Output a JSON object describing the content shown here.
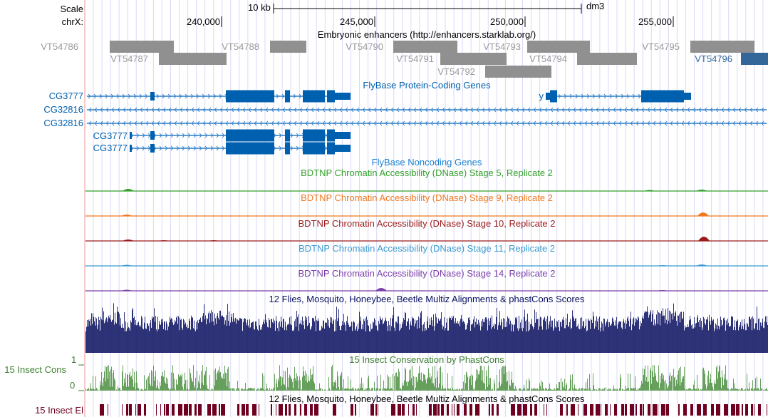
{
  "header": {
    "scale_label": "Scale",
    "scale_bar": "10 kb",
    "assembly": "dm3",
    "chrom_label": "chrX:",
    "ticks": [
      "240,000",
      "245,000",
      "250,000",
      "255,000"
    ]
  },
  "tracks": {
    "enhancers": {
      "title": "Embryonic enhancers (http://enhancers.starklab.org/)",
      "items": [
        "VT54786",
        "VT54787",
        "VT54788",
        "VT54790",
        "VT54791",
        "VT54792",
        "VT54793",
        "VT54794",
        "VT54795",
        "VT54796"
      ],
      "color": "#909090",
      "highlight_color": "#336699"
    },
    "protein_genes": {
      "title": "FlyBase Protein-Coding Genes",
      "genes": [
        "CG3777",
        "CG32816",
        "CG32816",
        "CG3777",
        "CG3777",
        "y"
      ],
      "color": "#0060B0"
    },
    "noncoding": {
      "title": "FlyBase Noncoding Genes"
    },
    "dnase": [
      {
        "title": "BDTNP Chromatin Accessibility (DNase) Stage 5, Replicate 2",
        "color": "#33A02C"
      },
      {
        "title": "BDTNP Chromatin Accessibility (DNase) Stage 9, Replicate 2",
        "color": "#F07820"
      },
      {
        "title": "BDTNP Chromatin Accessibility (DNase) Stage 10, Replicate 2",
        "color": "#9B1B1B"
      },
      {
        "title": "BDTNP Chromatin Accessibility (DNase) Stage 11, Replicate 2",
        "color": "#3A9AD0"
      },
      {
        "title": "BDTNP Chromatin Accessibility (DNase) Stage 14, Replicate 2",
        "color": "#7B3FA8"
      }
    ],
    "multiz": {
      "title": "12 Flies, Mosquito, Honeybee, Beetle Multiz Alignments & phastCons Scores",
      "color": "#0A1060"
    },
    "phastcons": {
      "title": "15 Insect Conservation by PhastCons",
      "label": "15 Insect Cons",
      "ymax": "1",
      "ymin": "0",
      "color": "#3C8030"
    },
    "elements": {
      "title": "12 Flies, Mosquito, Honeybee, Beetle Multiz Alignments & phastCons Scores",
      "label": "15 Insect El",
      "color": "#700020"
    }
  }
}
